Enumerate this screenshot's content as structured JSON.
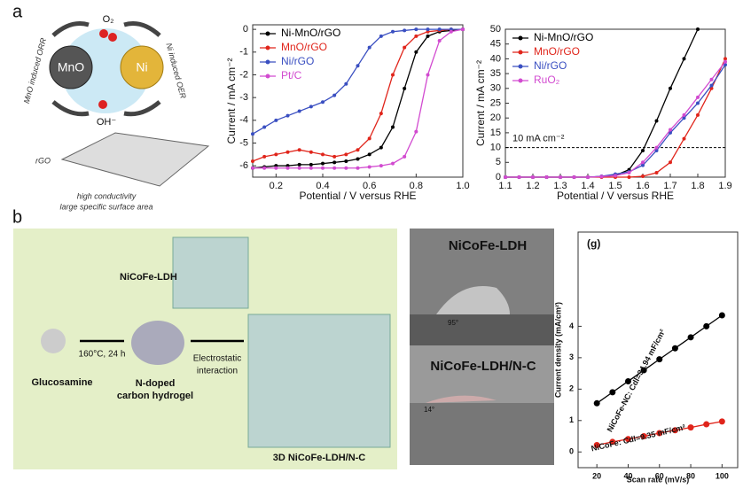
{
  "panel_labels": [
    "a",
    "b"
  ],
  "scheme": {
    "mno": "MnO",
    "ni": "Ni",
    "o2": "O₂",
    "oh": "OH⁻",
    "orr": "MnO induced ORR",
    "oer": "Ni induced OER",
    "rgo": "rGO",
    "caption1": "high conductivity",
    "caption2": "large specific surface area"
  },
  "synthesis": {
    "ldh": "NiCoFe-LDH",
    "glucosamine": "Glucosamine",
    "condition": "160°C, 24 h",
    "hydrogel1": "N-doped",
    "hydrogel2": "carbon hydrogel",
    "interaction1": "Electrostatic",
    "interaction2": "interaction",
    "product": "3D NiCoFe-LDH/N-C"
  },
  "photos": [
    {
      "title": "NiCoFe-LDH",
      "angle": "95°"
    },
    {
      "title": "NiCoFe-LDH/N-C",
      "angle": "14°"
    }
  ],
  "chart_data": [
    {
      "type": "line",
      "xlabel": "Potential / V versus RHE",
      "ylabel": "Current / mA cm⁻²",
      "x": [
        0.1,
        0.15,
        0.2,
        0.25,
        0.3,
        0.35,
        0.4,
        0.45,
        0.5,
        0.55,
        0.6,
        0.65,
        0.7,
        0.75,
        0.8,
        0.85,
        0.9,
        0.95,
        1.0
      ],
      "xlim": [
        0.1,
        1.0
      ],
      "ylim": [
        -6.5,
        0.2
      ],
      "xticks": [
        0.2,
        0.4,
        0.6,
        0.8,
        {
          "value": 1.0,
          "label": "1.0"
        }
      ],
      "yticks": [
        0,
        -1,
        -2,
        -3,
        -4,
        -5,
        -6
      ],
      "legend": "upper left",
      "series": [
        {
          "name": "Ni-MnO/rGO",
          "color": "#000000",
          "values": [
            -6.1,
            -6.05,
            -6.0,
            -6.0,
            -5.95,
            -5.95,
            -5.9,
            -5.85,
            -5.8,
            -5.7,
            -5.5,
            -5.2,
            -4.3,
            -2.6,
            -1.0,
            -0.3,
            -0.1,
            -0.05,
            0
          ]
        },
        {
          "name": "MnO/rGO",
          "color": "#e0251b",
          "values": [
            -5.8,
            -5.6,
            -5.5,
            -5.4,
            -5.3,
            -5.4,
            -5.5,
            -5.6,
            -5.5,
            -5.3,
            -4.8,
            -3.7,
            -2.0,
            -0.8,
            -0.3,
            -0.1,
            -0.05,
            0,
            0
          ]
        },
        {
          "name": "Ni/rGO",
          "color": "#3a4fc1",
          "values": [
            -4.6,
            -4.3,
            -4.0,
            -3.8,
            -3.6,
            -3.4,
            -3.2,
            -2.9,
            -2.4,
            -1.6,
            -0.8,
            -0.3,
            -0.1,
            -0.05,
            0,
            0,
            0,
            0,
            0
          ]
        },
        {
          "name": "Pt/C",
          "color": "#d24bd0",
          "values": [
            -6.1,
            -6.1,
            -6.1,
            -6.1,
            -6.1,
            -6.1,
            -6.1,
            -6.1,
            -6.1,
            -6.1,
            -6.05,
            -6.0,
            -5.9,
            -5.6,
            -4.5,
            -2.0,
            -0.5,
            -0.1,
            0
          ]
        }
      ]
    },
    {
      "type": "line",
      "xlabel": "Potential / V versus RHE",
      "ylabel": "Current / mA cm⁻²",
      "x": [
        1.1,
        1.15,
        1.2,
        1.25,
        1.3,
        1.35,
        1.4,
        1.45,
        1.5,
        1.55,
        1.6,
        1.65,
        1.7,
        1.75,
        1.8,
        1.85,
        1.9
      ],
      "xlim": [
        1.1,
        1.9
      ],
      "ylim": [
        0,
        50
      ],
      "xticks": [
        1.1,
        1.2,
        1.3,
        1.4,
        1.5,
        1.6,
        1.7,
        1.8,
        1.9
      ],
      "yticks": [
        0,
        5,
        10,
        15,
        20,
        25,
        30,
        35,
        40,
        45,
        50
      ],
      "legend": "upper left",
      "reference_line": 10,
      "annotation": "10 mA cm⁻²",
      "series": [
        {
          "name": "Ni-MnO/rGO",
          "color": "#000000",
          "values": [
            0,
            0,
            0,
            0,
            0,
            0,
            0,
            0.2,
            0.6,
            2.5,
            9,
            19,
            30,
            40,
            50,
            null,
            null
          ]
        },
        {
          "name": "MnO/rGO",
          "color": "#e0251b",
          "values": [
            0,
            0,
            0,
            0,
            0,
            0,
            0,
            0,
            0,
            0,
            0.3,
            1.5,
            5,
            13,
            21,
            30,
            40
          ]
        },
        {
          "name": "Ni/rGO",
          "color": "#3a4fc1",
          "values": [
            0,
            0,
            0,
            0,
            0,
            0,
            0,
            0.3,
            1,
            1.8,
            4,
            9,
            15,
            20,
            25,
            31,
            38
          ]
        },
        {
          "name": "RuO₂",
          "color": "#d24bd0",
          "values": [
            0,
            0,
            0,
            0,
            0,
            0,
            0,
            0.2,
            0.5,
            1.5,
            5,
            10,
            16,
            21,
            27,
            33,
            39
          ]
        }
      ]
    },
    {
      "type": "line",
      "title": "(g)",
      "xlabel": "Scan rate (mV/s)",
      "ylabel": "Current density (mA/cm²)",
      "x": [
        20,
        30,
        40,
        50,
        60,
        70,
        80,
        90,
        100
      ],
      "xlim": [
        8,
        110
      ],
      "ylim": [
        -0.5,
        7
      ],
      "xticks": [
        20,
        40,
        60,
        80,
        100
      ],
      "yticks": [
        0,
        1,
        2,
        3,
        4
      ],
      "annotations": [
        "NiCoFe-NC: Cdl=34.94 mF/cm²",
        "NiCoFe: Cdl=9.35 mF/cm²"
      ],
      "series": [
        {
          "color": "#000000",
          "values": [
            1.55,
            1.9,
            2.25,
            2.6,
            2.95,
            3.3,
            3.65,
            4.0,
            4.35
          ]
        },
        {
          "color": "#e0251b",
          "values": [
            0.22,
            0.32,
            0.41,
            0.5,
            0.6,
            0.69,
            0.78,
            0.88,
            0.97
          ]
        }
      ]
    }
  ]
}
